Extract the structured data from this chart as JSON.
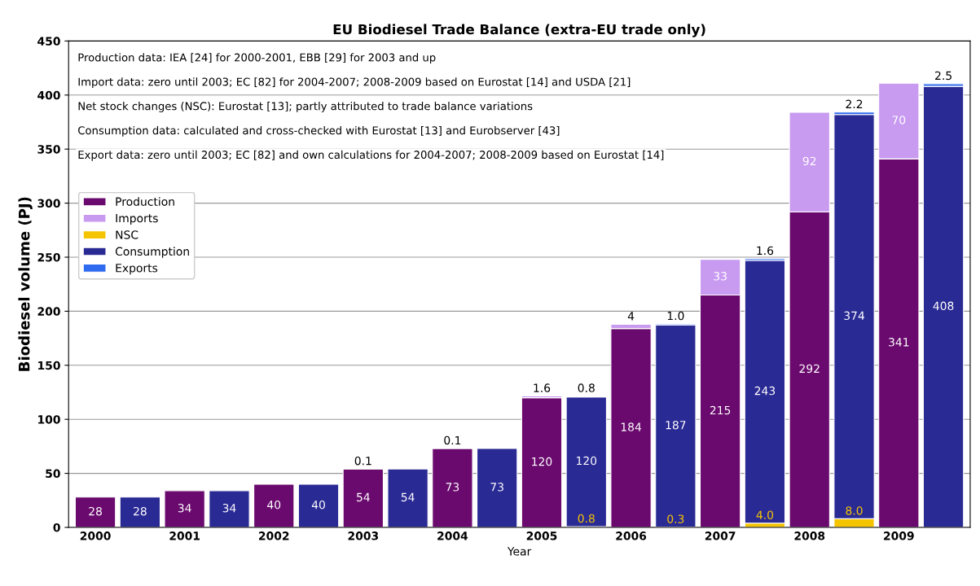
{
  "chart_data": {
    "type": "bar",
    "title": "EU Biodiesel Trade Balance (extra-EU trade only)",
    "ylabel": "Biodiesel volume (PJ)",
    "xlabel": "Year",
    "categories": [
      "2000",
      null,
      "2001",
      null,
      "2002",
      null,
      "2003",
      null,
      "2004",
      null,
      "2005",
      null,
      "2006",
      null,
      "2007",
      null,
      "2008",
      null,
      "2009",
      null
    ],
    "stacked": true,
    "series": [
      {
        "name": "Production",
        "color": "#6a0a6e",
        "values": [
          28,
          null,
          34,
          null,
          40,
          null,
          54,
          null,
          73,
          null,
          120,
          null,
          184,
          null,
          215,
          null,
          292,
          null,
          341,
          null
        ],
        "value_labels": [
          "28",
          null,
          "34",
          null,
          "40",
          null,
          "54",
          null,
          "73",
          null,
          "120",
          null,
          "184",
          null,
          "215",
          null,
          "292",
          null,
          "341",
          null
        ]
      },
      {
        "name": "Imports",
        "color": "#c89af0",
        "values": [
          null,
          null,
          null,
          null,
          null,
          null,
          0.1,
          null,
          0.1,
          null,
          1.6,
          null,
          4,
          null,
          33,
          null,
          92,
          null,
          70,
          null
        ],
        "value_labels": [
          null,
          null,
          null,
          null,
          null,
          null,
          "0.1",
          null,
          "0.1",
          null,
          "1.6",
          null,
          "4",
          null,
          "33",
          null,
          "92",
          null,
          "70",
          null
        ]
      },
      {
        "name": "NSC",
        "color": "#f5c400",
        "values": [
          null,
          null,
          null,
          null,
          null,
          null,
          null,
          null,
          null,
          null,
          null,
          0.8,
          null,
          0.3,
          null,
          4.0,
          null,
          8.0,
          null,
          null
        ],
        "value_labels": [
          null,
          null,
          null,
          null,
          null,
          null,
          null,
          null,
          null,
          null,
          null,
          "0.8",
          null,
          "0.3",
          null,
          "4.0",
          null,
          "8.0",
          null,
          null
        ]
      },
      {
        "name": "Consumption",
        "color": "#2a2a95",
        "values": [
          null,
          28,
          null,
          34,
          null,
          40,
          null,
          54,
          null,
          73,
          null,
          120,
          null,
          187,
          null,
          243,
          null,
          374,
          null,
          408
        ],
        "value_labels": [
          null,
          "28",
          null,
          "34",
          null,
          "40",
          null,
          "54",
          null,
          "73",
          null,
          "120",
          null,
          "187",
          null,
          "243",
          null,
          "374",
          null,
          "408"
        ]
      },
      {
        "name": "Exports",
        "color": "#2f6bf0",
        "values": [
          null,
          null,
          null,
          null,
          null,
          null,
          null,
          null,
          null,
          null,
          null,
          0.8,
          null,
          1.0,
          null,
          1.6,
          null,
          2.2,
          null,
          2.5
        ],
        "value_labels": [
          null,
          null,
          null,
          null,
          null,
          null,
          null,
          null,
          null,
          null,
          null,
          "0.8",
          null,
          "1.0",
          null,
          "1.6",
          null,
          "2.2",
          null,
          "2.5"
        ]
      }
    ],
    "ylim": [
      0,
      450
    ],
    "yticks": [
      0,
      50,
      100,
      150,
      200,
      250,
      300,
      350,
      400,
      450
    ],
    "grid": "y",
    "legend": "top left",
    "annotations": [
      "Production data: IEA [24] for 2000-2001, EBB [29] for 2003 and up",
      "Import data: zero until 2003; EC [82] for 2004-2007; 2008-2009 based on Eurostat [14] and USDA [21]",
      "Net stock changes (NSC): Eurostat [13]; partly attributed to trade balance variations",
      "Consumption data: calculated and cross-checked with Eurostat [13] and Eurobserver [43]",
      "Export data: zero until 2003; EC [82] and own calculations for 2004-2007; 2008-2009 based on Eurostat [14]"
    ]
  }
}
